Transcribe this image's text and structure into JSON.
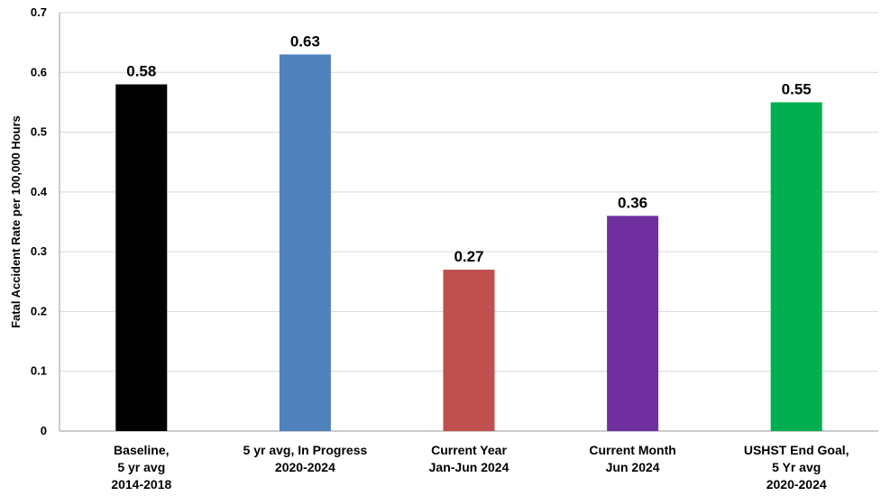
{
  "chart_data": {
    "type": "bar",
    "categories": [
      [
        "Baseline,",
        "5 yr avg",
        "2014-2018"
      ],
      [
        "5 yr avg, In Progress",
        "2020-2024"
      ],
      [
        "Current Year",
        "Jan-Jun 2024"
      ],
      [
        "Current Month",
        "Jun 2024"
      ],
      [
        "USHST End Goal,",
        "5 Yr avg",
        "2020-2024"
      ]
    ],
    "values": [
      0.58,
      0.63,
      0.27,
      0.36,
      0.55
    ],
    "data_labels": [
      "0.58",
      "0.63",
      "0.27",
      "0.36",
      "0.55"
    ],
    "colors": [
      "#000000",
      "#4f81bd",
      "#c0504d",
      "#7030a0",
      "#00b050"
    ],
    "ylabel": "Fatal Accident Rate per 100,000 Hours",
    "xlabel": "",
    "ylim": [
      0,
      0.7
    ],
    "yticks": [
      "0",
      "0.1",
      "0.2",
      "0.3",
      "0.4",
      "0.5",
      "0.6",
      "0.7"
    ],
    "grid": true,
    "legend": "none"
  }
}
